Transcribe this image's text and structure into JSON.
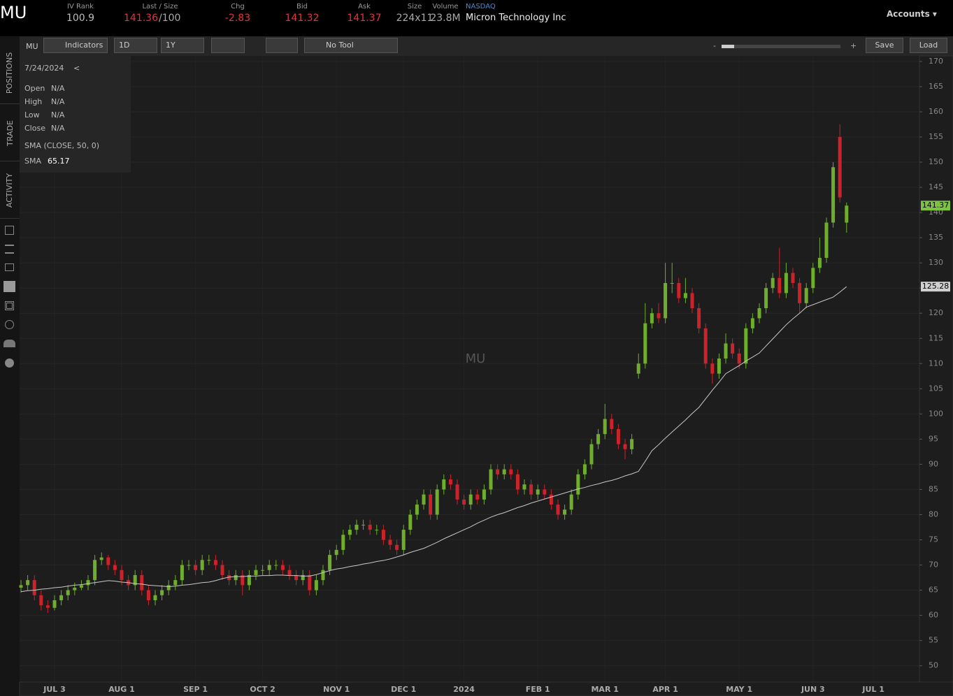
{
  "header": {
    "symbol": "MU",
    "fields": [
      {
        "label": "IV Rank",
        "value": "100.9",
        "color": "#bbbbbb"
      },
      {
        "label": "Last / Size",
        "value": "141.36",
        "extra": "/100",
        "color": "#e0343c"
      },
      {
        "label": "Chg",
        "value": "-2.83",
        "color": "#e0343c"
      },
      {
        "label": "Bid",
        "value": "141.32",
        "color": "#e0343c"
      },
      {
        "label": "Ask",
        "value": "141.37",
        "color": "#e0343c"
      },
      {
        "label": "Size",
        "value": "224x11",
        "color": "#aaaaaa"
      },
      {
        "label": "Volume",
        "value": "23.8M",
        "color": "#aaaaaa"
      }
    ],
    "exchange": "NASDAQ",
    "company": "Micron Technology Inc",
    "accounts": "Accounts"
  },
  "toolbar": {
    "symbol": "MU",
    "indicators": "Indicators",
    "aggregation": "1D",
    "range": "1Y",
    "tool": "No Tool",
    "zoom_out": "-",
    "zoom_in": "+",
    "save": "Save",
    "load": "Load"
  },
  "sidebar": {
    "tabs": [
      "POSITIONS",
      "TRADE",
      "ACTIVITY"
    ]
  },
  "data_box": {
    "date": "7/24/2024",
    "back": "<",
    "rows": [
      [
        "Open",
        "N/A"
      ],
      [
        "High",
        "N/A"
      ],
      [
        "Low",
        "N/A"
      ],
      [
        "Close",
        "N/A"
      ]
    ],
    "study": "SMA (CLOSE, 50, 0)",
    "sma_label": "SMA",
    "sma_value": "65.17"
  },
  "chart_data": {
    "type": "candlestick",
    "watermark": "MU",
    "up_color": "#6fae2c",
    "down_color": "#cc2229",
    "sma_color": "#c8c8c8",
    "grid": true,
    "ylim": [
      46.9,
      171.1
    ],
    "yticks": [
      50,
      55,
      60,
      65,
      70,
      75,
      80,
      85,
      90,
      95,
      100,
      105,
      110,
      115,
      120,
      125,
      130,
      135,
      140,
      145,
      150,
      155,
      160,
      165,
      170
    ],
    "categories": [
      null,
      null,
      null,
      null,
      null,
      "JUL 3",
      null,
      null,
      null,
      null,
      null,
      null,
      null,
      null,
      null,
      "AUG 1",
      null,
      null,
      null,
      null,
      null,
      null,
      null,
      null,
      null,
      null,
      "SEP 1",
      null,
      null,
      null,
      null,
      null,
      null,
      null,
      null,
      null,
      "OCT 2",
      null,
      null,
      null,
      null,
      null,
      null,
      null,
      null,
      null,
      null,
      "NOV 1",
      null,
      null,
      null,
      null,
      null,
      null,
      null,
      null,
      null,
      "DEC 1",
      null,
      null,
      null,
      null,
      null,
      null,
      null,
      null,
      "2024",
      null,
      null,
      null,
      null,
      null,
      null,
      null,
      null,
      null,
      null,
      "FEB 1",
      null,
      null,
      null,
      null,
      null,
      null,
      null,
      null,
      null,
      "MAR 1",
      null,
      null,
      null,
      null,
      null,
      null,
      null,
      null,
      "APR 1",
      null,
      null,
      null,
      null,
      null,
      null,
      null,
      null,
      null,
      null,
      "MAY 1",
      null,
      null,
      null,
      null,
      null,
      null,
      null,
      null,
      null,
      null,
      "JUN 3",
      null,
      null,
      null,
      null,
      null,
      null,
      null,
      null,
      "JUL 1"
    ],
    "ohlc": [
      [
        65.5,
        67,
        64.5,
        66
      ],
      [
        66,
        68,
        65,
        67
      ],
      [
        67,
        68,
        63,
        64
      ],
      [
        64,
        65,
        61,
        62
      ],
      [
        62,
        63,
        60.5,
        61.5
      ],
      [
        61.5,
        64,
        61,
        63
      ],
      [
        63,
        65,
        62,
        64
      ],
      [
        64,
        66,
        63,
        65
      ],
      [
        65,
        66.5,
        64,
        65.5
      ],
      [
        65.5,
        67,
        65,
        66
      ],
      [
        66,
        68,
        65,
        67
      ],
      [
        67,
        72,
        66,
        71
      ],
      [
        71,
        72.5,
        70,
        71.5
      ],
      [
        71.5,
        72,
        69,
        70
      ],
      [
        70,
        71,
        68,
        69
      ],
      [
        69,
        70,
        66,
        67
      ],
      [
        67,
        68,
        65,
        66
      ],
      [
        66,
        69,
        65,
        68
      ],
      [
        68,
        69,
        64,
        65
      ],
      [
        65,
        66,
        62,
        63
      ],
      [
        63,
        65,
        62,
        64
      ],
      [
        64,
        66,
        63,
        65
      ],
      [
        65,
        67,
        64,
        66
      ],
      [
        66,
        68,
        65,
        67
      ],
      [
        67,
        71,
        66,
        70
      ],
      [
        70,
        71,
        69,
        70
      ],
      [
        70,
        71,
        68,
        69
      ],
      [
        69,
        72,
        68,
        71
      ],
      [
        71,
        72,
        70,
        71
      ],
      [
        71,
        72,
        69,
        70
      ],
      [
        70,
        71,
        67,
        68
      ],
      [
        68,
        69,
        66,
        67
      ],
      [
        67,
        69,
        66,
        68
      ],
      [
        68,
        69,
        64,
        66
      ],
      [
        66,
        69,
        65,
        68
      ],
      [
        68,
        70,
        67,
        69
      ],
      [
        69,
        70,
        68,
        69
      ],
      [
        69,
        71,
        68,
        70
      ],
      [
        70,
        71,
        69,
        70
      ],
      [
        70,
        71,
        68,
        69
      ],
      [
        69,
        70,
        67,
        68
      ],
      [
        68,
        69,
        66,
        67
      ],
      [
        67,
        69,
        66,
        68
      ],
      [
        68,
        69,
        64,
        65
      ],
      [
        65,
        68,
        64,
        67
      ],
      [
        67,
        70,
        66,
        69
      ],
      [
        69,
        73,
        68,
        72
      ],
      [
        72,
        74,
        71,
        73
      ],
      [
        73,
        77,
        72,
        76
      ],
      [
        76,
        78,
        75,
        77
      ],
      [
        77,
        79,
        76,
        78
      ],
      [
        78,
        79,
        77,
        78
      ],
      [
        78,
        79,
        76,
        77
      ],
      [
        77,
        78,
        76,
        77
      ],
      [
        77,
        78,
        74,
        75
      ],
      [
        75,
        76,
        73,
        74
      ],
      [
        74,
        75,
        72,
        73
      ],
      [
        73,
        78,
        72,
        77
      ],
      [
        77,
        81,
        76,
        80
      ],
      [
        80,
        83,
        79,
        82
      ],
      [
        82,
        85,
        81,
        84
      ],
      [
        84,
        85,
        79,
        80
      ],
      [
        80,
        86,
        79,
        85
      ],
      [
        85,
        88,
        84,
        87
      ],
      [
        87,
        88,
        85,
        86
      ],
      [
        86,
        87,
        82,
        83
      ],
      [
        83,
        84,
        81,
        82
      ],
      [
        82,
        85,
        81,
        84
      ],
      [
        84,
        85,
        82,
        83
      ],
      [
        83,
        86,
        82,
        85
      ],
      [
        85,
        90,
        84,
        89
      ],
      [
        89,
        90,
        87,
        88
      ],
      [
        88,
        90,
        87,
        89
      ],
      [
        89,
        90,
        87,
        88
      ],
      [
        88,
        89,
        84,
        85
      ],
      [
        85,
        87,
        84,
        86
      ],
      [
        86,
        87,
        83,
        84
      ],
      [
        84,
        86,
        83,
        85
      ],
      [
        85,
        86,
        83,
        84
      ],
      [
        84,
        85,
        81,
        82
      ],
      [
        82,
        83,
        79,
        80
      ],
      [
        80,
        82,
        79,
        81
      ],
      [
        81,
        85,
        80,
        84
      ],
      [
        84,
        89,
        83,
        88
      ],
      [
        88,
        91,
        87,
        90
      ],
      [
        90,
        95,
        89,
        94
      ],
      [
        94,
        97,
        93,
        96
      ],
      [
        96,
        102,
        95,
        99
      ],
      [
        99,
        100,
        96,
        97
      ],
      [
        97,
        98,
        93,
        94
      ],
      [
        94,
        95,
        91,
        93
      ],
      [
        93,
        96,
        92,
        95
      ],
      [
        108,
        112,
        107,
        110
      ],
      [
        110,
        122,
        109,
        118
      ],
      [
        118,
        121,
        117,
        120
      ],
      [
        120,
        122,
        118,
        119
      ],
      [
        119,
        130,
        118,
        126
      ],
      [
        126,
        130,
        124,
        126
      ],
      [
        126,
        127,
        122,
        123
      ],
      [
        123,
        127,
        122,
        124
      ],
      [
        124,
        125,
        120,
        121
      ],
      [
        121,
        122,
        116,
        117
      ],
      [
        117,
        118,
        109,
        110
      ],
      [
        110,
        111,
        106,
        108
      ],
      [
        108,
        112,
        107,
        111
      ],
      [
        111,
        116,
        110,
        114
      ],
      [
        114,
        115,
        111,
        112
      ],
      [
        112,
        113,
        109,
        110
      ],
      [
        110,
        118,
        109,
        117
      ],
      [
        117,
        120,
        116,
        119
      ],
      [
        119,
        122,
        118,
        121
      ],
      [
        121,
        126,
        120,
        125
      ],
      [
        125,
        128,
        124,
        127
      ],
      [
        127,
        133,
        123,
        124
      ],
      [
        124,
        130,
        123,
        128
      ],
      [
        128,
        129,
        125,
        126
      ],
      [
        126,
        127,
        120,
        122
      ],
      [
        122,
        126,
        121,
        125
      ],
      [
        125,
        130,
        124,
        129
      ],
      [
        129,
        135,
        128,
        131
      ],
      [
        131,
        139,
        130,
        138
      ],
      [
        138,
        150,
        137,
        149
      ],
      [
        155,
        157.5,
        142,
        143
      ],
      [
        138,
        142,
        136,
        141.37
      ],
      null,
      null,
      null,
      null
    ],
    "sma": [
      64.7,
      64.9,
      65.0,
      65.2,
      65.3,
      65.5,
      65.6,
      65.8,
      66.0,
      66.1,
      66.3,
      66.5,
      66.7,
      66.9,
      66.8,
      66.6,
      66.5,
      66.3,
      66.2,
      66.0,
      65.9,
      65.8,
      65.7,
      65.8,
      66.0,
      66.1,
      66.3,
      66.5,
      66.6,
      66.9,
      67.3,
      67.6,
      67.7,
      67.7,
      67.8,
      67.8,
      67.9,
      67.9,
      68.0,
      68.0,
      67.9,
      67.9,
      67.8,
      67.8,
      68.1,
      68.5,
      68.9,
      69.2,
      69.4,
      69.7,
      69.9,
      70.2,
      70.4,
      70.7,
      70.9,
      71.2,
      71.6,
      72.0,
      72.5,
      72.9,
      73.3,
      73.9,
      74.5,
      75.2,
      75.8,
      76.4,
      77.0,
      77.6,
      78.3,
      78.9,
      79.5,
      80.0,
      80.4,
      80.9,
      81.4,
      81.8,
      82.3,
      82.7,
      83.1,
      83.5,
      83.9,
      84.3,
      84.7,
      85.1,
      85.4,
      85.8,
      86.1,
      86.5,
      86.8,
      87.2,
      87.7,
      88.1,
      88.6,
      90.6,
      92.7,
      93.9,
      95.2,
      96.4,
      97.6,
      98.8,
      100.1,
      101.3,
      103.0,
      104.7,
      106.3,
      108.0,
      108.8,
      109.6,
      110.5,
      111.3,
      112.1,
      113.5,
      114.9,
      116.3,
      117.7,
      118.9,
      120.0,
      121.2,
      121.7,
      122.2,
      122.7,
      123.2,
      124.2,
      125.28,
      null,
      null,
      null,
      null
    ],
    "price_tags": [
      {
        "value": 141.37,
        "color": "#7dc242",
        "text_color": "#000000"
      },
      {
        "value": 125.28,
        "color": "#d0d0d0",
        "text_color": "#000000"
      }
    ]
  }
}
